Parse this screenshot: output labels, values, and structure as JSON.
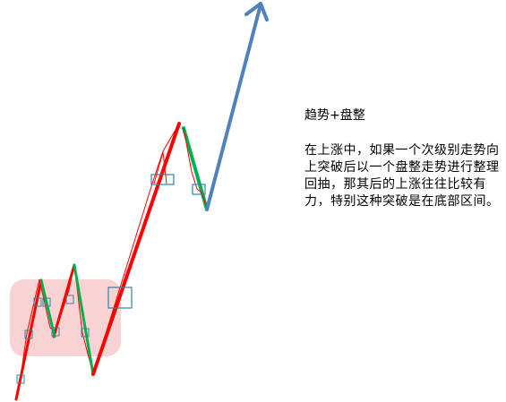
{
  "caption": {
    "title": "趋势+盘整",
    "body": "在上涨中，如果一个次级别走势向上突破后以一个盘整走势进行整理回抽，那其后的上涨往往比较有力，特别这种突破是在底部区间。"
  },
  "colors": {
    "up_trend": "#ff0000",
    "pullback": "#00b050",
    "future_arrow": "#4f81bd",
    "box_outline": "#31859c",
    "base_zone": "#f9d3d3",
    "text": "#000000"
  }
}
